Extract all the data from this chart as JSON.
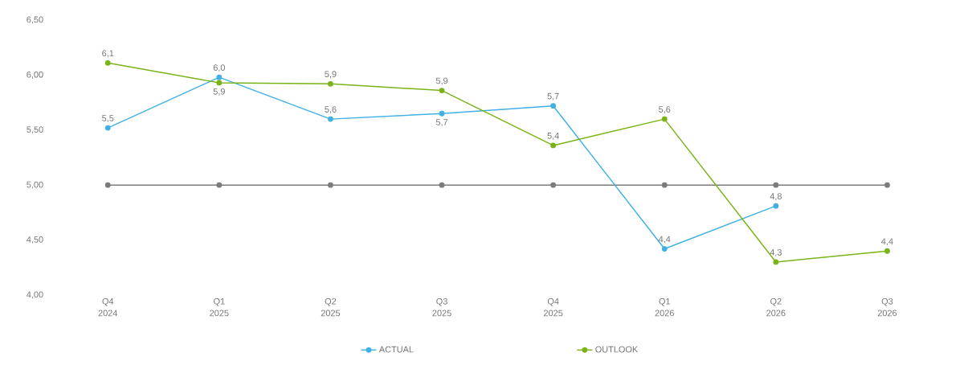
{
  "chart_data": {
    "type": "line",
    "categories": [
      "Q4 2024",
      "Q1 2025",
      "Q2 2025",
      "Q3 2025",
      "Q4 2025",
      "Q1 2026",
      "Q2 2026",
      "Q3 2026"
    ],
    "series": [
      {
        "name": "ACTUAL",
        "color": "#41b0e4",
        "values": [
          5.52,
          5.98,
          5.6,
          5.65,
          5.72,
          4.42,
          4.81,
          null
        ],
        "value_labels": [
          "5,5",
          "6,0",
          "5,6",
          "5,7",
          "5,7",
          "4,4",
          "4,8",
          null
        ]
      },
      {
        "name": "OUTLOOK",
        "color": "#7ab317",
        "values": [
          6.11,
          5.93,
          5.92,
          5.86,
          5.36,
          5.6,
          4.3,
          4.4
        ],
        "value_labels": [
          "6,1",
          "5,9",
          "5,9",
          "5,9",
          "5,4",
          "5,6",
          "4,3",
          "4,4"
        ]
      },
      {
        "color": "#7b7b7b",
        "values": [
          5,
          5,
          5,
          5,
          5,
          5,
          5,
          5
        ]
      }
    ],
    "ylim": [
      4,
      6.5
    ],
    "yticks": [
      {
        "value": 4,
        "label": "4,00"
      },
      {
        "value": 4.5,
        "label": "4,50"
      },
      {
        "value": 5,
        "label": "5,00"
      },
      {
        "value": 5.5,
        "label": "5,50"
      },
      {
        "value": 6,
        "label": "6,00"
      },
      {
        "value": 6.5,
        "label": "6,50"
      }
    ],
    "marker": "circle",
    "legend": "bottom",
    "grid": false
  }
}
